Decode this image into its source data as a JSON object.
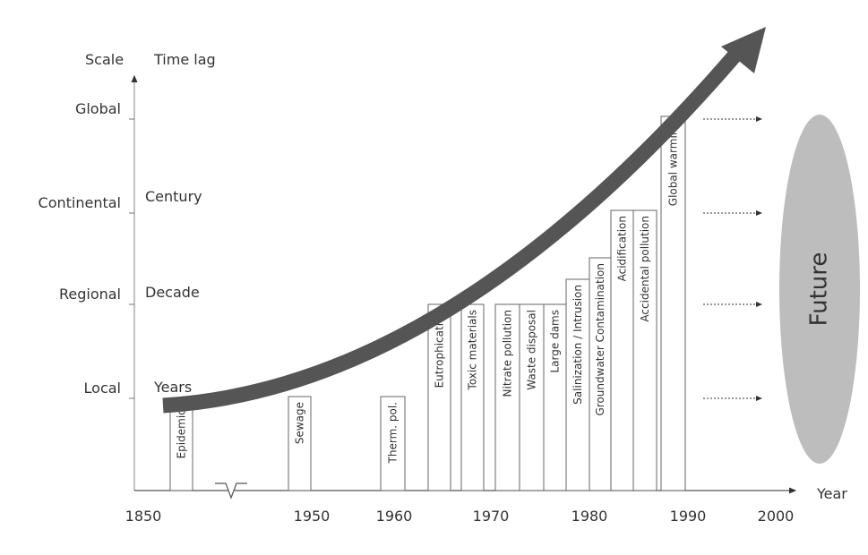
{
  "axes": {
    "scale_title": "Scale",
    "time_lag_title": "Time lag",
    "x_title": "Year"
  },
  "scale_levels": [
    "Global",
    "Continental",
    "Regional",
    "Local"
  ],
  "time_lags": [
    "Century",
    "Decade",
    "Years"
  ],
  "x_labels": [
    "1850",
    "1950",
    "1960",
    "1970",
    "1980",
    "1990",
    "2000"
  ],
  "problems": [
    "Epidemics",
    "Sewage",
    "Therm. pol.",
    "Eutrophication",
    "Toxic materials",
    "Nitrate pollution",
    "Waste disposal",
    "Large dams",
    "Salinization / Intrusion",
    "Groundwater Contamination",
    "Acidification",
    "Accidental pollution",
    "Global warming"
  ],
  "future": "Future"
}
